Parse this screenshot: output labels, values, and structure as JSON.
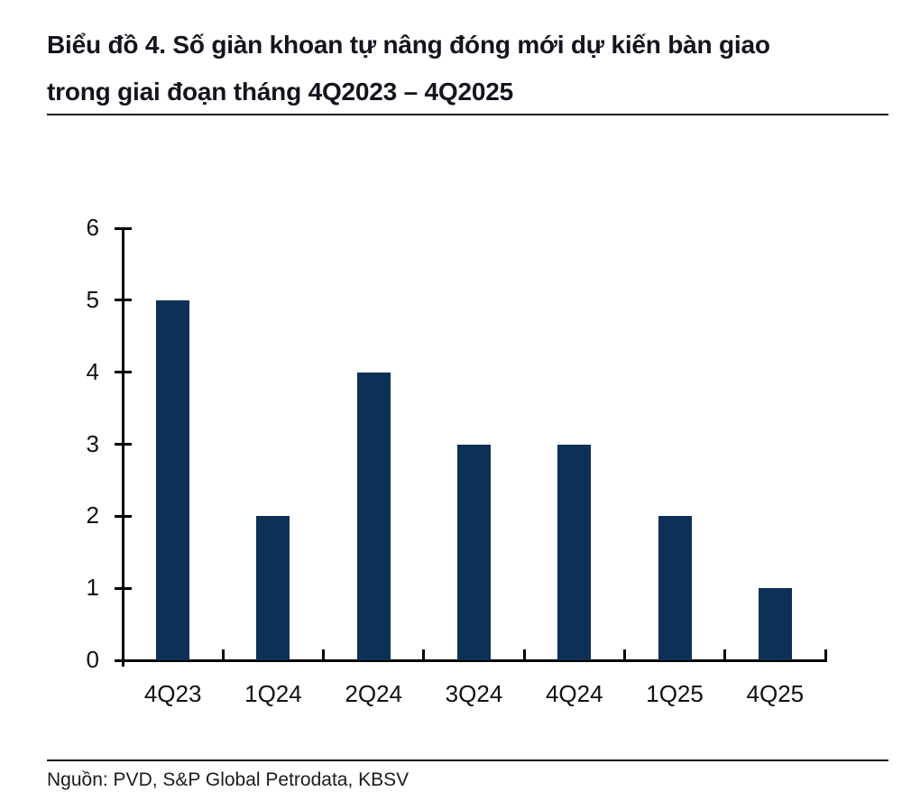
{
  "page": {
    "title_line1": "Biểu đồ 4. Số giàn khoan tự nâng đóng mới dự kiến bàn giao",
    "title_line2": "trong giai đoạn tháng 4Q2023 –  4Q2025",
    "source": "Nguồn: PVD, S&P Global Petrodata, KBSV"
  },
  "colors": {
    "bar": "#0d3056",
    "axis": "#000000",
    "title_text": "#14141e"
  },
  "chart_data": {
    "type": "bar",
    "title": "Biểu đồ 4. Số giàn khoan tự nâng đóng mới dự kiến bàn giao trong giai đoạn tháng 4Q2023 – 4Q2025",
    "categories": [
      "4Q23",
      "1Q24",
      "2Q24",
      "3Q24",
      "4Q24",
      "1Q25",
      "4Q25"
    ],
    "values": [
      5,
      2,
      4,
      3,
      3,
      2,
      1
    ],
    "series_name": "Số giàn khoan tự nâng đóng mới dự kiến bàn giao",
    "xlabel": "",
    "ylabel": "",
    "ylim": [
      0,
      6
    ],
    "ytick_step": 1,
    "yticks": [
      0,
      1,
      2,
      3,
      4,
      5,
      6
    ],
    "grid": false,
    "legend_position": "none",
    "bar_color": "#0d3056",
    "source": "Nguồn: PVD, S&P Global Petrodata, KBSV"
  }
}
